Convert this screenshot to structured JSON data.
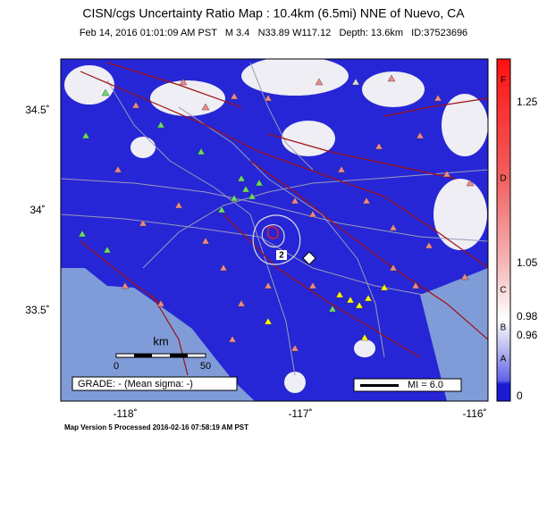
{
  "header": {
    "title": "CISN/cgs Uncertainty Ratio Map : 10.4km (6.5mi) NNE of Nuevo, CA",
    "subtitle": "Feb 14, 2016 01:01:09 AM PST   M 3.4   N33.89 W117.12   Depth: 13.6km   ID:37523696"
  },
  "map": {
    "lat_labels": [
      "34.5˚",
      "34˚",
      "33.5˚"
    ],
    "lon_labels": [
      "-118˚",
      "-117˚",
      "-116˚"
    ],
    "scale": {
      "unit": "km",
      "start": "0",
      "end": "50"
    },
    "grade": "GRADE: - (Mean sigma: -)",
    "mi_legend": "MI = 6.0",
    "contour_label": "2"
  },
  "colorbar": {
    "grades": [
      "F",
      "D",
      "C",
      "B",
      "A"
    ],
    "values": [
      "1.25",
      "1.05",
      "0.98",
      "0.96",
      "0"
    ]
  },
  "footer": "Map Version 5 Processed 2016-02-16 07:58:19 AM PST"
}
